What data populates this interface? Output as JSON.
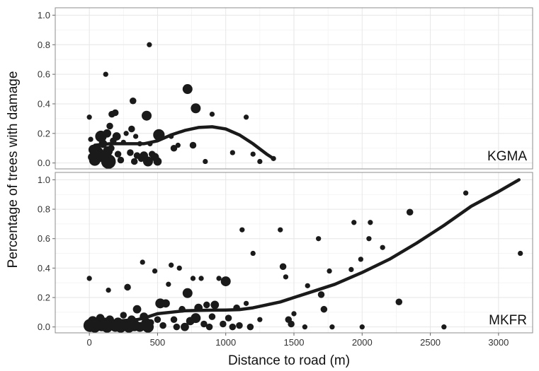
{
  "chart_data": {
    "type": "scatter",
    "xlabel": "Distance to road (m)",
    "ylabel": "Percentage of trees with damage",
    "xlim": [
      -250,
      3250
    ],
    "x_ticks": [
      0,
      500,
      1000,
      1500,
      2000,
      2500,
      3000
    ],
    "y_ticks": [
      0.0,
      0.2,
      0.4,
      0.6,
      0.8,
      1.0
    ],
    "y_tick_labels": [
      "0.0",
      "0.2",
      "0.4",
      "0.6",
      "0.8",
      "1.0"
    ],
    "grid": true,
    "colors": {
      "points": "#1a1a1a",
      "curve": "#1a1a1a",
      "grid": "#e6e6e6",
      "frame": "#8c8c8c"
    },
    "panels": [
      {
        "label": "KGMA",
        "ylim": [
          -0.04,
          1.05
        ],
        "curve": [
          [
            40,
            0.12
          ],
          [
            150,
            0.13
          ],
          [
            300,
            0.13
          ],
          [
            400,
            0.13
          ],
          [
            500,
            0.15
          ],
          [
            600,
            0.19
          ],
          [
            700,
            0.22
          ],
          [
            800,
            0.24
          ],
          [
            900,
            0.245
          ],
          [
            1000,
            0.23
          ],
          [
            1100,
            0.19
          ],
          [
            1200,
            0.13
          ],
          [
            1300,
            0.06
          ],
          [
            1350,
            0.03
          ]
        ],
        "points": [
          {
            "x": 0,
            "y": 0.31,
            "s": 2
          },
          {
            "x": 10,
            "y": 0.16,
            "s": 2
          },
          {
            "x": 20,
            "y": 0.04,
            "s": 4
          },
          {
            "x": 30,
            "y": 0.09,
            "s": 5
          },
          {
            "x": 40,
            "y": 0.02,
            "s": 6
          },
          {
            "x": 55,
            "y": 0.07,
            "s": 7
          },
          {
            "x": 60,
            "y": 0.11,
            "s": 3
          },
          {
            "x": 75,
            "y": 0.04,
            "s": 5
          },
          {
            "x": 85,
            "y": 0.18,
            "s": 6
          },
          {
            "x": 100,
            "y": 0.13,
            "s": 4
          },
          {
            "x": 110,
            "y": 0.05,
            "s": 4
          },
          {
            "x": 120,
            "y": 0.6,
            "s": 2
          },
          {
            "x": 130,
            "y": 0.2,
            "s": 4
          },
          {
            "x": 135,
            "y": 0.08,
            "s": 5
          },
          {
            "x": 140,
            "y": 0.01,
            "s": 8
          },
          {
            "x": 150,
            "y": 0.25,
            "s": 3
          },
          {
            "x": 160,
            "y": 0.1,
            "s": 3
          },
          {
            "x": 165,
            "y": 0.33,
            "s": 3
          },
          {
            "x": 175,
            "y": 0.15,
            "s": 3
          },
          {
            "x": 190,
            "y": 0.34,
            "s": 3
          },
          {
            "x": 200,
            "y": 0.18,
            "s": 4
          },
          {
            "x": 210,
            "y": 0.06,
            "s": 3
          },
          {
            "x": 230,
            "y": 0.02,
            "s": 3
          },
          {
            "x": 250,
            "y": 0.14,
            "s": 2
          },
          {
            "x": 270,
            "y": 0.2,
            "s": 2
          },
          {
            "x": 300,
            "y": 0.07,
            "s": 3
          },
          {
            "x": 310,
            "y": 0.23,
            "s": 3
          },
          {
            "x": 320,
            "y": 0.42,
            "s": 3
          },
          {
            "x": 330,
            "y": 0.01,
            "s": 3
          },
          {
            "x": 340,
            "y": 0.18,
            "s": 2
          },
          {
            "x": 350,
            "y": 0.05,
            "s": 3
          },
          {
            "x": 370,
            "y": 0.13,
            "s": 2
          },
          {
            "x": 380,
            "y": 0.03,
            "s": 3
          },
          {
            "x": 400,
            "y": 0.05,
            "s": 4
          },
          {
            "x": 420,
            "y": 0.32,
            "s": 5
          },
          {
            "x": 430,
            "y": 0.01,
            "s": 5
          },
          {
            "x": 440,
            "y": 0.8,
            "s": 2
          },
          {
            "x": 445,
            "y": 0.13,
            "s": 2
          },
          {
            "x": 460,
            "y": 0.06,
            "s": 3
          },
          {
            "x": 480,
            "y": 0.04,
            "s": 4
          },
          {
            "x": 500,
            "y": 0.01,
            "s": 4
          },
          {
            "x": 510,
            "y": 0.19,
            "s": 6
          },
          {
            "x": 600,
            "y": 0.18,
            "s": 2
          },
          {
            "x": 620,
            "y": 0.1,
            "s": 3
          },
          {
            "x": 650,
            "y": 0.12,
            "s": 2
          },
          {
            "x": 720,
            "y": 0.5,
            "s": 5
          },
          {
            "x": 760,
            "y": 0.12,
            "s": 3
          },
          {
            "x": 780,
            "y": 0.37,
            "s": 5
          },
          {
            "x": 850,
            "y": 0.01,
            "s": 2
          },
          {
            "x": 900,
            "y": 0.33,
            "s": 2
          },
          {
            "x": 1050,
            "y": 0.07,
            "s": 2
          },
          {
            "x": 1150,
            "y": 0.31,
            "s": 2
          },
          {
            "x": 1200,
            "y": 0.06,
            "s": 2
          },
          {
            "x": 1250,
            "y": 0.01,
            "s": 2
          },
          {
            "x": 1350,
            "y": 0.03,
            "s": 2
          }
        ]
      },
      {
        "label": "MKFR",
        "ylim": [
          -0.04,
          1.05
        ],
        "curve": [
          [
            40,
            0.03
          ],
          [
            200,
            0.04
          ],
          [
            350,
            0.05
          ],
          [
            400,
            0.06
          ],
          [
            500,
            0.09
          ],
          [
            600,
            0.1
          ],
          [
            700,
            0.11
          ],
          [
            800,
            0.112
          ],
          [
            900,
            0.114
          ],
          [
            1000,
            0.115
          ],
          [
            1100,
            0.118
          ],
          [
            1200,
            0.13
          ],
          [
            1300,
            0.15
          ],
          [
            1400,
            0.17
          ],
          [
            1500,
            0.2
          ],
          [
            1600,
            0.23
          ],
          [
            1800,
            0.29
          ],
          [
            2000,
            0.37
          ],
          [
            2200,
            0.46
          ],
          [
            2400,
            0.57
          ],
          [
            2600,
            0.69
          ],
          [
            2800,
            0.82
          ],
          [
            3000,
            0.92
          ],
          [
            3150,
            1.0
          ]
        ],
        "points": [
          {
            "x": 0,
            "y": 0.33,
            "s": 2
          },
          {
            "x": 5,
            "y": 0.01,
            "s": 7
          },
          {
            "x": 25,
            "y": 0.04,
            "s": 5
          },
          {
            "x": 40,
            "y": 0.0,
            "s": 6
          },
          {
            "x": 60,
            "y": 0.02,
            "s": 6
          },
          {
            "x": 80,
            "y": 0.06,
            "s": 4
          },
          {
            "x": 90,
            "y": 0.01,
            "s": 6
          },
          {
            "x": 110,
            "y": 0.03,
            "s": 5
          },
          {
            "x": 130,
            "y": 0.0,
            "s": 6
          },
          {
            "x": 140,
            "y": 0.25,
            "s": 2
          },
          {
            "x": 150,
            "y": 0.05,
            "s": 4
          },
          {
            "x": 170,
            "y": 0.02,
            "s": 5
          },
          {
            "x": 190,
            "y": 0.0,
            "s": 5
          },
          {
            "x": 210,
            "y": 0.03,
            "s": 5
          },
          {
            "x": 230,
            "y": 0.0,
            "s": 6
          },
          {
            "x": 250,
            "y": 0.08,
            "s": 3
          },
          {
            "x": 260,
            "y": 0.02,
            "s": 5
          },
          {
            "x": 280,
            "y": 0.27,
            "s": 3
          },
          {
            "x": 290,
            "y": 0.0,
            "s": 6
          },
          {
            "x": 310,
            "y": 0.05,
            "s": 4
          },
          {
            "x": 330,
            "y": 0.01,
            "s": 6
          },
          {
            "x": 350,
            "y": 0.12,
            "s": 4
          },
          {
            "x": 370,
            "y": 0.0,
            "s": 5
          },
          {
            "x": 390,
            "y": 0.44,
            "s": 2
          },
          {
            "x": 400,
            "y": 0.07,
            "s": 4
          },
          {
            "x": 420,
            "y": 0.02,
            "s": 6
          },
          {
            "x": 430,
            "y": 0.0,
            "s": 6
          },
          {
            "x": 450,
            "y": 0.03,
            "s": 3
          },
          {
            "x": 480,
            "y": 0.38,
            "s": 2
          },
          {
            "x": 500,
            "y": 0.05,
            "s": 3
          },
          {
            "x": 520,
            "y": 0.16,
            "s": 5
          },
          {
            "x": 540,
            "y": 0.01,
            "s": 3
          },
          {
            "x": 560,
            "y": 0.16,
            "s": 4
          },
          {
            "x": 580,
            "y": 0.29,
            "s": 2
          },
          {
            "x": 600,
            "y": 0.42,
            "s": 2
          },
          {
            "x": 620,
            "y": 0.05,
            "s": 3
          },
          {
            "x": 640,
            "y": 0.0,
            "s": 3
          },
          {
            "x": 660,
            "y": 0.4,
            "s": 2
          },
          {
            "x": 680,
            "y": 0.12,
            "s": 3
          },
          {
            "x": 700,
            "y": 0.0,
            "s": 4
          },
          {
            "x": 720,
            "y": 0.23,
            "s": 5
          },
          {
            "x": 740,
            "y": 0.04,
            "s": 4
          },
          {
            "x": 760,
            "y": 0.33,
            "s": 2
          },
          {
            "x": 780,
            "y": 0.06,
            "s": 5
          },
          {
            "x": 800,
            "y": 0.13,
            "s": 4
          },
          {
            "x": 820,
            "y": 0.33,
            "s": 2
          },
          {
            "x": 840,
            "y": 0.02,
            "s": 3
          },
          {
            "x": 860,
            "y": 0.15,
            "s": 3
          },
          {
            "x": 880,
            "y": 0.0,
            "s": 3
          },
          {
            "x": 900,
            "y": 0.07,
            "s": 3
          },
          {
            "x": 920,
            "y": 0.15,
            "s": 4
          },
          {
            "x": 950,
            "y": 0.33,
            "s": 2
          },
          {
            "x": 980,
            "y": 0.02,
            "s": 3
          },
          {
            "x": 1000,
            "y": 0.31,
            "s": 5
          },
          {
            "x": 1020,
            "y": 0.06,
            "s": 3
          },
          {
            "x": 1050,
            "y": 0.0,
            "s": 3
          },
          {
            "x": 1080,
            "y": 0.13,
            "s": 3
          },
          {
            "x": 1100,
            "y": 0.01,
            "s": 3
          },
          {
            "x": 1120,
            "y": 0.66,
            "s": 2
          },
          {
            "x": 1150,
            "y": 0.16,
            "s": 2
          },
          {
            "x": 1180,
            "y": 0.0,
            "s": 3
          },
          {
            "x": 1200,
            "y": 0.5,
            "s": 2
          },
          {
            "x": 1250,
            "y": 0.05,
            "s": 2
          },
          {
            "x": 1400,
            "y": 0.66,
            "s": 2
          },
          {
            "x": 1420,
            "y": 0.41,
            "s": 3
          },
          {
            "x": 1440,
            "y": 0.34,
            "s": 2
          },
          {
            "x": 1460,
            "y": 0.05,
            "s": 3
          },
          {
            "x": 1480,
            "y": 0.02,
            "s": 3
          },
          {
            "x": 1500,
            "y": 0.09,
            "s": 2
          },
          {
            "x": 1580,
            "y": 0.0,
            "s": 2
          },
          {
            "x": 1600,
            "y": 0.28,
            "s": 2
          },
          {
            "x": 1680,
            "y": 0.6,
            "s": 2
          },
          {
            "x": 1700,
            "y": 0.22,
            "s": 3
          },
          {
            "x": 1720,
            "y": 0.12,
            "s": 3
          },
          {
            "x": 1760,
            "y": 0.38,
            "s": 2
          },
          {
            "x": 1780,
            "y": 0.0,
            "s": 2
          },
          {
            "x": 1920,
            "y": 0.39,
            "s": 2
          },
          {
            "x": 1940,
            "y": 0.71,
            "s": 2
          },
          {
            "x": 1990,
            "y": 0.46,
            "s": 2
          },
          {
            "x": 2000,
            "y": 0.0,
            "s": 2
          },
          {
            "x": 2050,
            "y": 0.6,
            "s": 2
          },
          {
            "x": 2060,
            "y": 0.71,
            "s": 2
          },
          {
            "x": 2150,
            "y": 0.54,
            "s": 2
          },
          {
            "x": 2270,
            "y": 0.17,
            "s": 3
          },
          {
            "x": 2350,
            "y": 0.78,
            "s": 3
          },
          {
            "x": 2600,
            "y": 0.0,
            "s": 2
          },
          {
            "x": 2760,
            "y": 0.91,
            "s": 2
          },
          {
            "x": 3160,
            "y": 0.5,
            "s": 2
          }
        ]
      }
    ]
  }
}
